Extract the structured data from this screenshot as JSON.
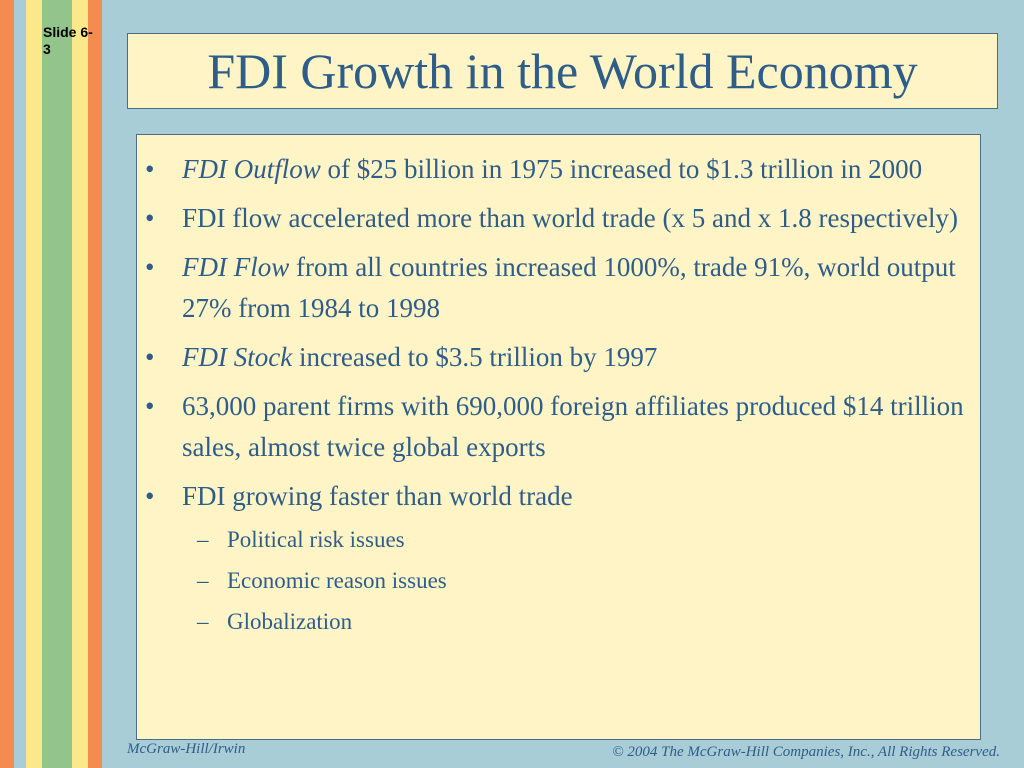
{
  "slide_number": "Slide 6-3",
  "title": "FDI Growth in the World Economy",
  "bullets": [
    {
      "em": "FDI Outflow",
      "text": " of $25 billion in 1975 increased to $1.3 trillion in 2000"
    },
    {
      "em": "",
      "text": "FDI flow accelerated more than world trade (x 5 and x 1.8 respectively)"
    },
    {
      "em": "FDI Flow",
      "text": " from all countries increased 1000%, trade 91%, world output 27% from 1984 to 1998"
    },
    {
      "em": "FDI Stock",
      "text": " increased to $3.5 trillion by 1997"
    },
    {
      "em": "",
      "text": "63,000 parent firms with 690,000 foreign affiliates produced $14 trillion sales, almost twice global exports"
    },
    {
      "em": "",
      "text": "FDI growing faster than world trade"
    }
  ],
  "sub_bullets": [
    "Political risk issues",
    "Economic reason issues",
    "Globalization"
  ],
  "bullet_glyph": "•",
  "dash_glyph": "–",
  "footer": {
    "publisher": "McGraw-Hill/Irwin",
    "copyright": "© 2004 The McGraw-Hill Companies, Inc., All Rights Reserved."
  },
  "colors": {
    "background": "#a9cdd7",
    "box_fill": "#fff4c5",
    "text": "#2f5d8a",
    "stripe_orange": "#f58c4f",
    "stripe_yellow": "#fbe88a",
    "stripe_green": "#93c48c"
  }
}
